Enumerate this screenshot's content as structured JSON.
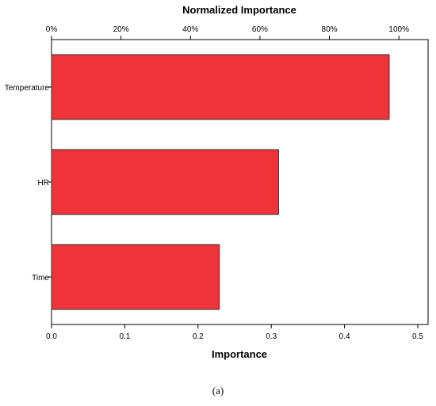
{
  "chart_data": {
    "type": "bar",
    "orientation": "horizontal",
    "categories": [
      "Temperature",
      "HR",
      "Time"
    ],
    "values": [
      0.461,
      0.31,
      0.229
    ],
    "xlabel": "Importance",
    "xlim": [
      0,
      0.5
    ],
    "x_ticks": [
      "0.0",
      "0.1",
      "0.2",
      "0.3",
      "0.4",
      "0.5"
    ],
    "secondary_xlabel": "Normalized Importance",
    "secondary_x_ticks": [
      "0%",
      "20%",
      "40%",
      "60%",
      "80%",
      "100%"
    ],
    "secondary_xlim_pct": [
      0,
      108.4
    ],
    "bar_color": "#ee3339",
    "bar_edge_color": "#333333",
    "grid": false,
    "legend": "none"
  },
  "caption": "(a)"
}
